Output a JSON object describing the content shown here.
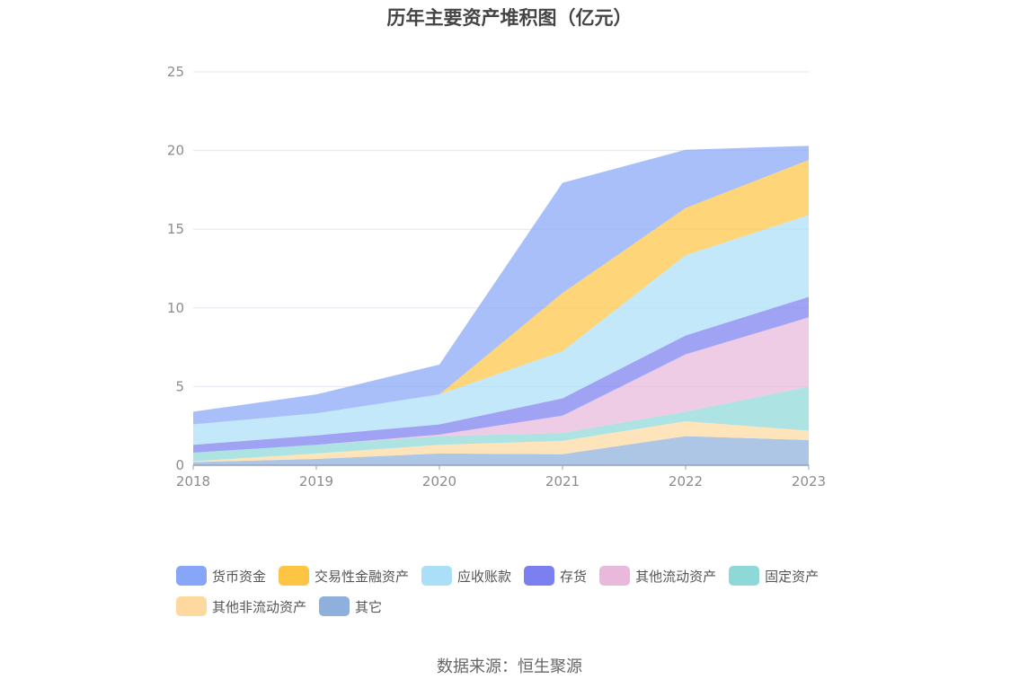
{
  "chart_data": {
    "type": "area",
    "stacked": true,
    "title": "历年主要资产堆积图（亿元）",
    "x": [
      "2018",
      "2019",
      "2020",
      "2021",
      "2022",
      "2023"
    ],
    "ylim": [
      0,
      25
    ],
    "yticks": [
      0,
      5,
      10,
      15,
      20,
      25
    ],
    "grid": true,
    "legend_position": "bottom",
    "series": [
      {
        "name": "其它",
        "color": "#8fb0dc",
        "values": [
          0.2,
          0.4,
          0.75,
          0.7,
          1.85,
          1.6
        ]
      },
      {
        "name": "其他非流动资产",
        "color": "#fdd9a0",
        "values": [
          0.05,
          0.35,
          0.55,
          0.85,
          0.95,
          0.6
        ]
      },
      {
        "name": "固定资产",
        "color": "#8ed8d8",
        "values": [
          0.55,
          0.55,
          0.55,
          0.5,
          0.6,
          2.8
        ]
      },
      {
        "name": "其他流动资产",
        "color": "#e8b9db",
        "values": [
          0,
          0,
          0.1,
          1.1,
          3.65,
          4.4
        ]
      },
      {
        "name": "存货",
        "color": "#7b7ff0",
        "values": [
          0.5,
          0.6,
          0.65,
          1.1,
          1.2,
          1.3
        ]
      },
      {
        "name": "应收账款",
        "color": "#aadff7",
        "values": [
          1.3,
          1.4,
          1.9,
          3.0,
          5.1,
          5.2
        ]
      },
      {
        "name": "交易性金融资产",
        "color": "#fec544",
        "values": [
          0,
          0,
          0,
          3.7,
          3.0,
          3.5
        ]
      },
      {
        "name": "货币资金",
        "color": "#88a6f8",
        "values": [
          0.8,
          1.2,
          1.9,
          7.0,
          3.7,
          0.9
        ]
      }
    ]
  },
  "legend": [
    {
      "label": "货币资金",
      "color": "#88a6f8"
    },
    {
      "label": "交易性金融资产",
      "color": "#fec544"
    },
    {
      "label": "应收账款",
      "color": "#aadff7"
    },
    {
      "label": "存货",
      "color": "#7b7ff0"
    },
    {
      "label": "其他流动资产",
      "color": "#e8b9db"
    },
    {
      "label": "固定资产",
      "color": "#8ed8d8"
    },
    {
      "label": "其他非流动资产",
      "color": "#fdd9a0"
    },
    {
      "label": "其它",
      "color": "#8fb0dc"
    }
  ],
  "source": "数据来源：恒生聚源"
}
